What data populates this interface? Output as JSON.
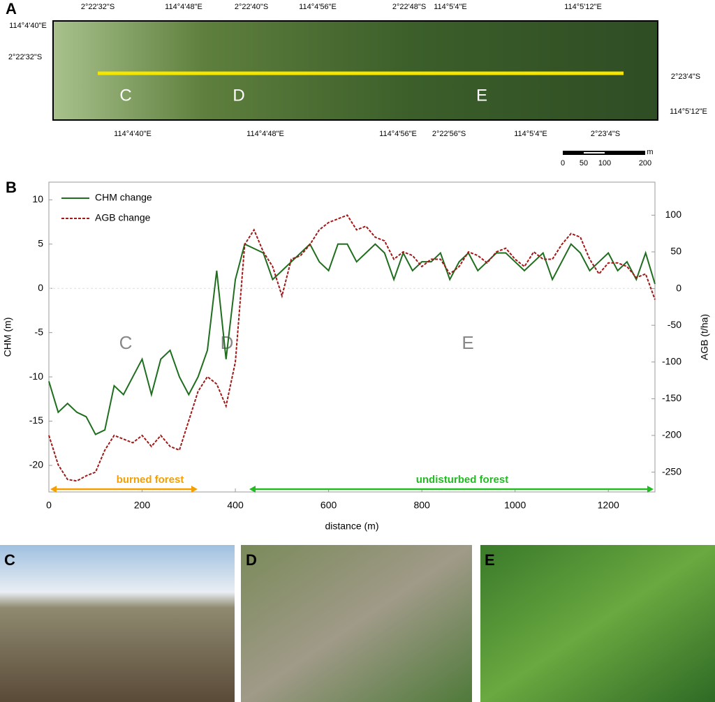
{
  "panels": {
    "a": "A",
    "b": "B",
    "c": "C",
    "d": "D",
    "e": "E"
  },
  "map": {
    "labels": [
      "2°22'32\"S",
      "114°4'48\"E",
      "2°22'40\"S",
      "114°4'56\"E",
      "2°22'48\"S",
      "114°5'4\"E",
      "114°5'12\"E",
      "114°4'40\"E",
      "2°22'32\"S",
      "2°23'4\"S",
      "114°5'12\"E",
      "114°4'40\"E",
      "114°4'48\"E",
      "114°4'56\"E",
      "2°22'56\"S",
      "114°5'4\"E",
      "2°23'4\"S"
    ],
    "sites": [
      "C",
      "D",
      "E"
    ],
    "scale_unit": "m",
    "scale_ticks": [
      "0",
      "50",
      "100",
      "200"
    ]
  },
  "chart_data": {
    "type": "line",
    "xlabel": "distance (m)",
    "ylabel": "CHM (m)",
    "y2label": "AGB (t/ha)",
    "x": [
      0,
      20,
      40,
      60,
      80,
      100,
      120,
      140,
      160,
      180,
      200,
      220,
      240,
      260,
      280,
      300,
      320,
      340,
      360,
      380,
      400,
      420,
      440,
      460,
      480,
      500,
      520,
      540,
      560,
      580,
      600,
      620,
      640,
      660,
      680,
      700,
      720,
      740,
      760,
      780,
      800,
      820,
      840,
      860,
      880,
      900,
      920,
      940,
      960,
      980,
      1000,
      1020,
      1040,
      1060,
      1080,
      1100,
      1120,
      1140,
      1160,
      1180,
      1200,
      1220,
      1240,
      1260,
      1280,
      1300
    ],
    "series": [
      {
        "name": "CHM change",
        "color": "#1e6e1e",
        "style": "solid",
        "values": [
          -10.5,
          -14,
          -13,
          -14,
          -14.5,
          -16.5,
          -16,
          -11,
          -12,
          -10,
          -8,
          -12,
          -8,
          -7,
          -10,
          -12,
          -10,
          -7,
          2,
          -8,
          1,
          5,
          4.5,
          4,
          1,
          2,
          3,
          4,
          5,
          3,
          2,
          5,
          5,
          3,
          4,
          5,
          4,
          1,
          4,
          2,
          3,
          3,
          4,
          1,
          3,
          4,
          2,
          3,
          4,
          4,
          3,
          2,
          3,
          4,
          1,
          3,
          5,
          4,
          2,
          3,
          4,
          2,
          3,
          1,
          4,
          0.5
        ]
      },
      {
        "name": "AGB change",
        "color": "#a01818",
        "style": "dashed",
        "axis": "y2",
        "values": [
          -200,
          -240,
          -260,
          -262,
          -255,
          -250,
          -220,
          -200,
          -205,
          -210,
          -200,
          -215,
          -200,
          -215,
          -220,
          -180,
          -140,
          -120,
          -130,
          -160,
          -100,
          60,
          80,
          50,
          30,
          -10,
          40,
          45,
          60,
          80,
          90,
          95,
          100,
          80,
          85,
          70,
          65,
          40,
          50,
          45,
          30,
          40,
          40,
          20,
          30,
          50,
          45,
          35,
          50,
          55,
          40,
          30,
          50,
          40,
          40,
          60,
          75,
          70,
          40,
          20,
          35,
          35,
          30,
          15,
          20,
          -15
        ]
      }
    ],
    "xlim": [
      0,
      1300
    ],
    "xticks": [
      0,
      200,
      400,
      600,
      800,
      1000,
      1200
    ],
    "ylim": [
      -23,
      12
    ],
    "yticks": [
      -20,
      -15,
      -10,
      -5,
      0,
      5,
      10
    ],
    "y2lim": [
      -277,
      145
    ],
    "y2ticks": [
      -250,
      -200,
      -150,
      -100,
      -50,
      0,
      50,
      100
    ],
    "legend": "top-left",
    "annotations": [
      "C",
      "D",
      "E",
      "burned forest",
      "undisturbed forest"
    ]
  }
}
